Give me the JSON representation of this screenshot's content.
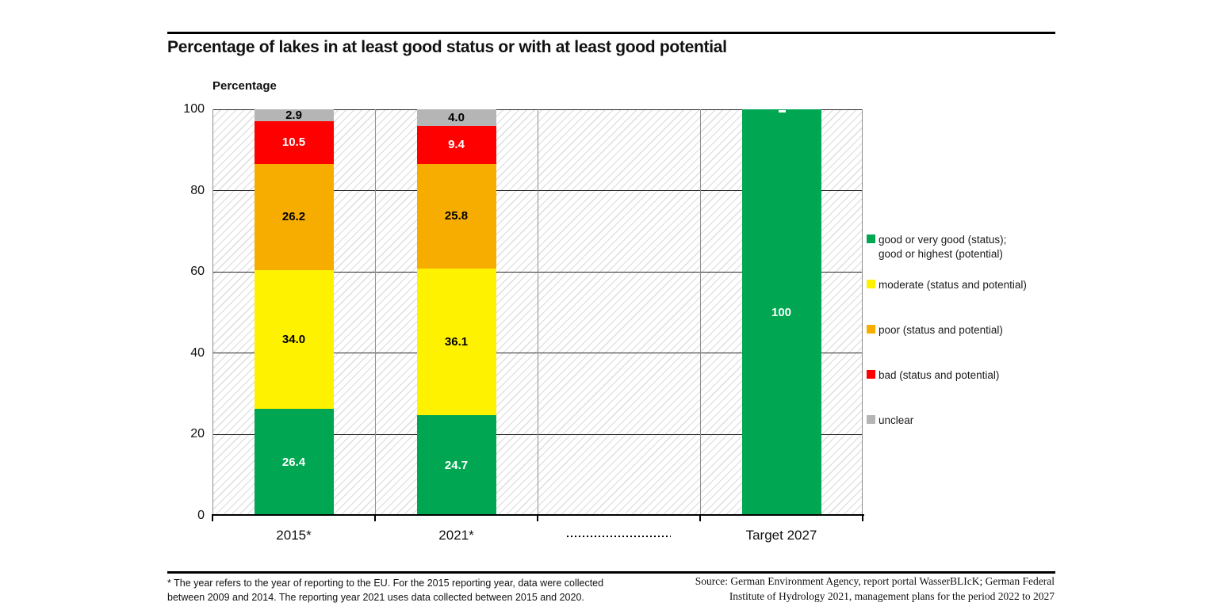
{
  "header": {
    "title": "Percentage of lakes in at least good status or with at least good potential"
  },
  "chart_data": {
    "type": "bar",
    "stacked": true,
    "title": "Percentage of lakes in at least good status or with at least good potential",
    "ylabel": "Percentage",
    "xlabel": "",
    "categories": [
      "2015*",
      "2021*",
      "",
      "Target 2027"
    ],
    "category_separator_style": "dotted line shown instead of label for category index 2",
    "ylim": [
      0,
      100
    ],
    "yticks": [
      0,
      20,
      40,
      60,
      80,
      100
    ],
    "grid": true,
    "legend_position": "right",
    "plot_background": "diagonal-hatch",
    "series": [
      {
        "name": "good or very good (status); good or highest (potential)",
        "legend_lines": [
          "good or very good (status);",
          "good or highest (potential)"
        ],
        "color": "#00A651",
        "label_color": "#FFFFFF",
        "values": [
          26.4,
          24.7,
          0,
          100
        ],
        "labels": [
          "26.4",
          "24.7",
          "",
          "100"
        ]
      },
      {
        "name": "moderate (status and potential)",
        "legend_lines": [
          "moderate (status and potential)"
        ],
        "color": "#FFF200",
        "label_color": "#000000",
        "values": [
          34.0,
          36.1,
          0,
          0
        ],
        "labels": [
          "34.0",
          "36.1",
          "",
          ""
        ]
      },
      {
        "name": "poor (status and potential)",
        "legend_lines": [
          "poor (status and potential)"
        ],
        "color": "#F7AC00",
        "label_color": "#000000",
        "values": [
          26.2,
          25.8,
          0,
          0
        ],
        "labels": [
          "26.2",
          "25.8",
          "",
          ""
        ]
      },
      {
        "name": "bad (status and potential)",
        "legend_lines": [
          "bad (status and potential)"
        ],
        "color": "#FF0000",
        "label_color": "#FFFFFF",
        "values": [
          10.5,
          9.4,
          0,
          0
        ],
        "labels": [
          "10.5",
          "9.4",
          "",
          ""
        ]
      },
      {
        "name": "unclear",
        "legend_lines": [
          "unclear"
        ],
        "color": "#B5B5B5",
        "label_color": "#000000",
        "values": [
          2.9,
          4.0,
          0,
          0
        ],
        "labels": [
          "2.9",
          "4.0",
          "",
          ""
        ]
      }
    ]
  },
  "artifacts": {
    "category3_baseline_mark": "-----",
    "target_bar_top_mark": "-"
  },
  "footer": {
    "footnote_lines": [
      "* The year refers to the year of reporting to the EU. For the 2015 reporting year, data were collected",
      "between 2009 and 2014. The reporting year 2021 uses data collected between 2015 and 2020."
    ],
    "source_lines": [
      "Source: German Environment Agency, report portal WasserBLIcK; German Federal",
      "Institute of Hydrology 2021, management plans for the period 2022 to 2027"
    ]
  }
}
